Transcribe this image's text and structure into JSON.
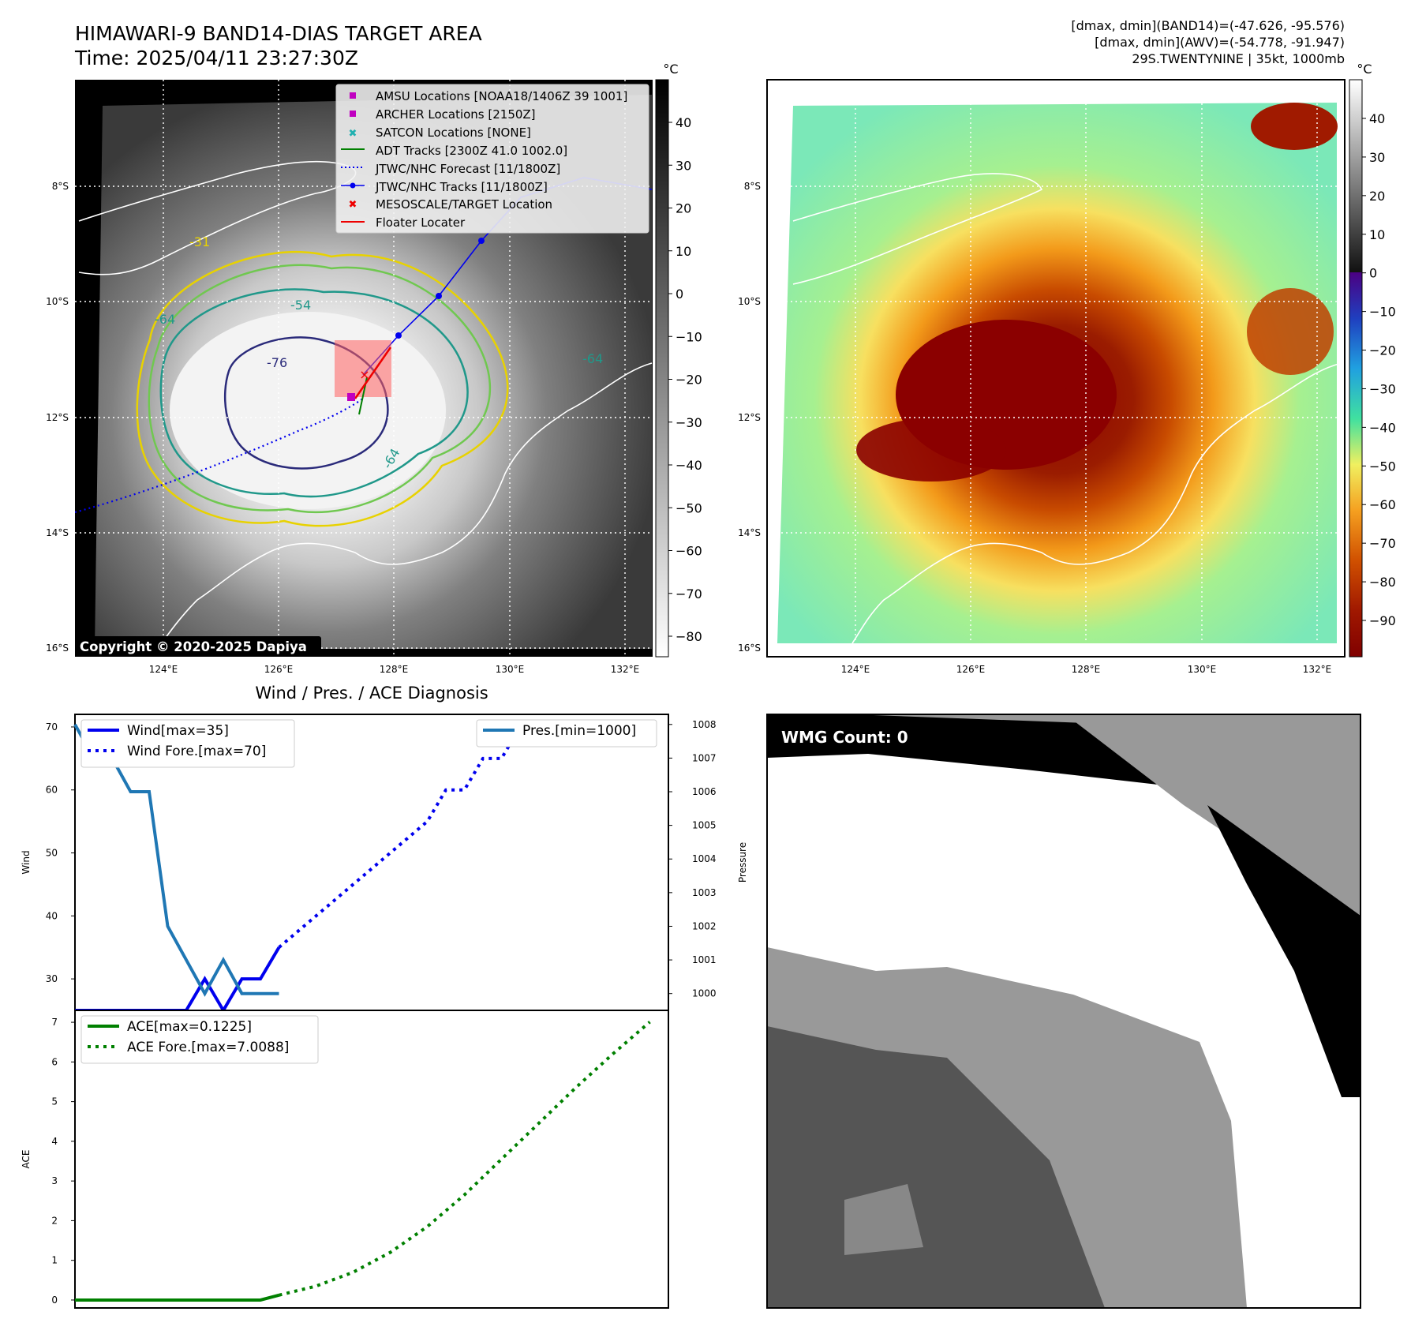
{
  "header": {
    "title": "HIMAWARI-9 BAND14-DIAS TARGET AREA",
    "time": "Time: 2025/04/11 23:27:30Z",
    "info_lines": [
      "[dmax, dmin](BAND14)=(-47.626, -95.576)",
      "[dmax, dmin](AWV)=(-54.778, -91.947)",
      "29S.TWENTYNINE | 35kt, 1000mb"
    ]
  },
  "map": {
    "lat_ticks": [
      "8°S",
      "10°S",
      "12°S",
      "14°S",
      "16°S"
    ],
    "lon_ticks": [
      "124°E",
      "126°E",
      "128°E",
      "130°E",
      "132°E"
    ],
    "legend": [
      {
        "label": "AMSU Locations [NOAA18/1406Z 39 1001]",
        "marker": "square",
        "color": "#c000c0"
      },
      {
        "label": "ARCHER Locations [2150Z]",
        "marker": "square",
        "color": "#c000c0"
      },
      {
        "label": "SATCON Locations [NONE]",
        "marker": "x",
        "color": "#20b0b0"
      },
      {
        "label": "ADT Tracks [2300Z 41.0 1002.0]",
        "marker": "line",
        "color": "#008000"
      },
      {
        "label": "JTWC/NHC Forecast [11/1800Z]",
        "marker": "dotted",
        "color": "#0000ee"
      },
      {
        "label": "JTWC/NHC Tracks [11/1800Z]",
        "marker": "dotline",
        "color": "#0000ee"
      },
      {
        "label": "MESOSCALE/TARGET Location",
        "marker": "x",
        "color": "#ee0000"
      },
      {
        "label": "Floater Locater",
        "marker": "line",
        "color": "#ee0000"
      }
    ],
    "contour_labels": [
      "-31",
      "-54",
      "-64",
      "-76",
      "-64",
      "-64"
    ],
    "copyright": "Copyright © 2020-2025 Dapiya",
    "colorbar_unit": "°C",
    "colorbar_ticks": [
      "40",
      "30",
      "20",
      "10",
      "0",
      "−10",
      "−20",
      "−30",
      "−40",
      "−50",
      "−60",
      "−70",
      "−80"
    ],
    "awv_colorbar_unit": "°C",
    "awv_colorbar_ticks": [
      "40",
      "30",
      "20",
      "10",
      "0",
      "−10",
      "−20",
      "−30",
      "−40",
      "−50",
      "−60",
      "−70",
      "−80",
      "−90"
    ]
  },
  "diagnosis_title": "Wind / Pres. / ACE Diagnosis",
  "chart_data": [
    {
      "type": "line",
      "title": "Wind / Pres. / ACE Diagnosis",
      "ylabel": "Wind",
      "y2label": "Pressure",
      "ylim": [
        25,
        72
      ],
      "y2lim": [
        999.5,
        1008.3
      ],
      "yticks": [
        30,
        40,
        50,
        60,
        70
      ],
      "y2ticks": [
        1000,
        1001,
        1002,
        1003,
        1004,
        1005,
        1006,
        1007,
        1008
      ],
      "xlim": [
        0,
        32
      ],
      "series": [
        {
          "name": "Wind[max=35]",
          "axis": "left",
          "style": "solid",
          "color": "#0000ee",
          "x": [
            0,
            1,
            2,
            3,
            4,
            5,
            6,
            7,
            8,
            9,
            10,
            11
          ],
          "y": [
            25,
            25,
            25,
            25,
            25,
            25,
            25,
            30,
            25,
            30,
            30,
            35
          ]
        },
        {
          "name": "Wind Fore.[max=70]",
          "axis": "left",
          "style": "dotted",
          "color": "#0000ee",
          "x": [
            11,
            13,
            15,
            17,
            19,
            20,
            21,
            22,
            23,
            24,
            25,
            27,
            28,
            29,
            30,
            31
          ],
          "y": [
            35,
            40,
            45,
            50,
            55,
            60,
            60,
            65,
            65,
            70,
            70,
            70,
            70,
            70,
            70,
            70
          ]
        },
        {
          "name": "Pres.[min=1000]",
          "axis": "right",
          "style": "solid",
          "color": "#1f77b4",
          "x": [
            0,
            1,
            2,
            3,
            4,
            5,
            6,
            7,
            8,
            9,
            10,
            11
          ],
          "y": [
            1008,
            1007,
            1007,
            1006,
            1006,
            1002,
            1001,
            1000,
            1001,
            1000,
            1000,
            1000
          ]
        }
      ]
    },
    {
      "type": "line",
      "ylabel": "ACE",
      "ylim": [
        -0.2,
        7.3
      ],
      "yticks": [
        0,
        1,
        2,
        3,
        4,
        5,
        6,
        7
      ],
      "xlim": [
        0,
        32
      ],
      "series": [
        {
          "name": "ACE[max=0.1225]",
          "style": "solid",
          "color": "#008000",
          "x": [
            0,
            1,
            2,
            3,
            4,
            5,
            6,
            7,
            8,
            9,
            10,
            11
          ],
          "y": [
            0,
            0,
            0,
            0,
            0,
            0,
            0,
            0,
            0,
            0,
            0,
            0.1225
          ]
        },
        {
          "name": "ACE Fore.[max=7.0088]",
          "style": "dotted",
          "color": "#008000",
          "x": [
            11,
            13,
            15,
            17,
            19,
            21,
            23,
            25,
            27,
            29,
            31
          ],
          "y": [
            0.1225,
            0.35,
            0.7,
            1.2,
            1.85,
            2.65,
            3.55,
            4.45,
            5.35,
            6.2,
            7.0088
          ]
        }
      ]
    }
  ],
  "wmg": {
    "label": "WMG Count: 0"
  }
}
